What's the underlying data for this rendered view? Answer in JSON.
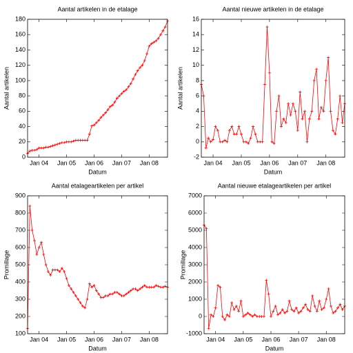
{
  "chart_data": [
    {
      "type": "line",
      "title": "Aantal artikelen in de etalage",
      "xlabel": "Datum",
      "ylabel": "Aantal artikelen",
      "color": "#ff0000",
      "x": [
        "2003-08",
        "2003-09",
        "2003-10",
        "2003-11",
        "2003-12",
        "2004-01",
        "2004-02",
        "2004-03",
        "2004-04",
        "2004-05",
        "2004-06",
        "2004-07",
        "2004-08",
        "2004-09",
        "2004-10",
        "2004-11",
        "2004-12",
        "2005-01",
        "2005-02",
        "2005-03",
        "2005-04",
        "2005-05",
        "2005-06",
        "2005-07",
        "2005-08",
        "2005-09",
        "2005-10",
        "2005-11",
        "2005-12",
        "2006-01",
        "2006-02",
        "2006-03",
        "2006-04",
        "2006-05",
        "2006-06",
        "2006-07",
        "2006-08",
        "2006-09",
        "2006-10",
        "2006-11",
        "2006-12",
        "2007-01",
        "2007-02",
        "2007-03",
        "2007-04",
        "2007-05",
        "2007-06",
        "2007-07",
        "2007-08",
        "2007-09",
        "2007-10",
        "2007-11",
        "2007-12",
        "2008-01",
        "2008-02",
        "2008-03",
        "2008-04",
        "2008-05",
        "2008-06",
        "2008-07",
        "2008-08",
        "2008-09"
      ],
      "values": [
        5,
        8,
        9,
        9,
        10,
        12,
        12,
        12,
        13,
        13,
        14,
        15,
        16,
        17,
        18,
        19,
        19,
        20,
        20,
        20,
        21,
        22,
        22,
        22,
        22,
        22,
        22,
        30,
        41,
        42,
        45,
        48,
        52,
        55,
        58,
        62,
        66,
        68,
        72,
        77,
        80,
        83,
        86,
        88,
        92,
        96,
        102,
        108,
        113,
        117,
        120,
        126,
        135,
        145,
        148,
        150,
        152,
        155,
        160,
        165,
        170,
        178
      ],
      "xlim": [
        "2003-08",
        "2008-09"
      ],
      "xticks": [
        {
          "value": "2004-01",
          "label": "Jan 04"
        },
        {
          "value": "2005-01",
          "label": "Jan 05"
        },
        {
          "value": "2006-01",
          "label": "Jan 06"
        },
        {
          "value": "2007-01",
          "label": "Jan 07"
        },
        {
          "value": "2008-01",
          "label": "Jan 08"
        }
      ],
      "ylim": [
        0,
        180
      ],
      "yticks": [
        0,
        20,
        40,
        60,
        80,
        100,
        120,
        140,
        160,
        180
      ]
    },
    {
      "type": "line",
      "title": "Aantal nieuwe artikelen in de etalage",
      "xlabel": "Datum",
      "ylabel": "Aantal artikelen",
      "color": "#ff0000",
      "x": [
        "2003-08",
        "2003-09",
        "2003-10",
        "2003-11",
        "2003-12",
        "2004-01",
        "2004-02",
        "2004-03",
        "2004-04",
        "2004-05",
        "2004-06",
        "2004-07",
        "2004-08",
        "2004-09",
        "2004-10",
        "2004-11",
        "2004-12",
        "2005-01",
        "2005-02",
        "2005-03",
        "2005-04",
        "2005-05",
        "2005-06",
        "2005-07",
        "2005-08",
        "2005-09",
        "2005-10",
        "2005-11",
        "2005-12",
        "2006-01",
        "2006-02",
        "2006-03",
        "2006-04",
        "2006-05",
        "2006-06",
        "2006-07",
        "2006-08",
        "2006-09",
        "2006-10",
        "2006-11",
        "2006-12",
        "2007-01",
        "2007-02",
        "2007-03",
        "2007-04",
        "2007-05",
        "2007-06",
        "2007-07",
        "2007-08",
        "2007-09",
        "2007-10",
        "2007-11",
        "2007-12",
        "2008-01",
        "2008-02",
        "2008-03",
        "2008-04",
        "2008-05",
        "2008-06",
        "2008-07",
        "2008-08",
        "2008-09"
      ],
      "values": [
        7.5,
        6,
        -0.8,
        0.5,
        0,
        0.3,
        2,
        1.5,
        0,
        0,
        0.2,
        0,
        1.5,
        2,
        1,
        1,
        2,
        1,
        0,
        0,
        -0.2,
        0.5,
        2,
        1,
        0,
        0,
        0,
        7.5,
        15,
        9,
        0,
        -0.2,
        4,
        6,
        2,
        3,
        2.5,
        5,
        3.5,
        5,
        4,
        1.5,
        6.5,
        3,
        4,
        0,
        3,
        4,
        8,
        9.5,
        3,
        4.5,
        4,
        8,
        11,
        4,
        1.5,
        1,
        3,
        6,
        2.5,
        5
      ],
      "xlim": [
        "2003-08",
        "2008-09"
      ],
      "xticks": [
        {
          "value": "2004-01",
          "label": "Jan 04"
        },
        {
          "value": "2005-01",
          "label": "Jan 05"
        },
        {
          "value": "2006-01",
          "label": "Jan 06"
        },
        {
          "value": "2007-01",
          "label": "Jan 07"
        },
        {
          "value": "2008-01",
          "label": "Jan 08"
        }
      ],
      "ylim": [
        -2,
        16
      ],
      "yticks": [
        -2,
        0,
        2,
        4,
        6,
        8,
        10,
        12,
        14,
        16
      ]
    },
    {
      "type": "line",
      "title": "Aantal etalageartikelen per artikel",
      "xlabel": "Datum",
      "ylabel": "Promillage",
      "color": "#ff0000",
      "x": [
        "2003-08",
        "2003-09",
        "2003-10",
        "2003-11",
        "2003-12",
        "2004-01",
        "2004-02",
        "2004-03",
        "2004-04",
        "2004-05",
        "2004-06",
        "2004-07",
        "2004-08",
        "2004-09",
        "2004-10",
        "2004-11",
        "2004-12",
        "2005-01",
        "2005-02",
        "2005-03",
        "2005-04",
        "2005-05",
        "2005-06",
        "2005-07",
        "2005-08",
        "2005-09",
        "2005-10",
        "2005-11",
        "2005-12",
        "2006-01",
        "2006-02",
        "2006-03",
        "2006-04",
        "2006-05",
        "2006-06",
        "2006-07",
        "2006-08",
        "2006-09",
        "2006-10",
        "2006-11",
        "2006-12",
        "2007-01",
        "2007-02",
        "2007-03",
        "2007-04",
        "2007-05",
        "2007-06",
        "2007-07",
        "2007-08",
        "2007-09",
        "2007-10",
        "2007-11",
        "2007-12",
        "2008-01",
        "2008-02",
        "2008-03",
        "2008-04",
        "2008-05",
        "2008-06",
        "2008-07",
        "2008-08",
        "2008-09"
      ],
      "values": [
        130,
        840,
        700,
        640,
        560,
        600,
        630,
        560,
        500,
        460,
        440,
        470,
        470,
        470,
        460,
        480,
        460,
        420,
        380,
        360,
        340,
        320,
        300,
        280,
        260,
        250,
        300,
        390,
        370,
        380,
        350,
        330,
        310,
        310,
        320,
        320,
        330,
        330,
        340,
        340,
        330,
        320,
        320,
        330,
        340,
        350,
        360,
        360,
        350,
        360,
        370,
        380,
        370,
        370,
        370,
        370,
        380,
        375,
        370,
        370,
        375,
        370
      ],
      "xlim": [
        "2003-08",
        "2008-09"
      ],
      "xticks": [
        {
          "value": "2004-01",
          "label": "Jan 04"
        },
        {
          "value": "2005-01",
          "label": "Jan 05"
        },
        {
          "value": "2006-01",
          "label": "Jan 06"
        },
        {
          "value": "2007-01",
          "label": "Jan 07"
        },
        {
          "value": "2008-01",
          "label": "Jan 08"
        }
      ],
      "ylim": [
        100,
        900
      ],
      "yticks": [
        100,
        200,
        300,
        400,
        500,
        600,
        700,
        800,
        900
      ]
    },
    {
      "type": "line",
      "title": "Aantal nieuwe etalageartikelen per artikel",
      "xlabel": "Datum",
      "ylabel": "Promillage",
      "color": "#ff0000",
      "x": [
        "2003-08",
        "2003-09",
        "2003-10",
        "2003-11",
        "2003-12",
        "2004-01",
        "2004-02",
        "2004-03",
        "2004-04",
        "2004-05",
        "2004-06",
        "2004-07",
        "2004-08",
        "2004-09",
        "2004-10",
        "2004-11",
        "2004-12",
        "2005-01",
        "2005-02",
        "2005-03",
        "2005-04",
        "2005-05",
        "2005-06",
        "2005-07",
        "2005-08",
        "2005-09",
        "2005-10",
        "2005-11",
        "2005-12",
        "2006-01",
        "2006-02",
        "2006-03",
        "2006-04",
        "2006-05",
        "2006-06",
        "2006-07",
        "2006-08",
        "2006-09",
        "2006-10",
        "2006-11",
        "2006-12",
        "2007-01",
        "2007-02",
        "2007-03",
        "2007-04",
        "2007-05",
        "2007-06",
        "2007-07",
        "2007-08",
        "2007-09",
        "2007-10",
        "2007-11",
        "2007-12",
        "2008-01",
        "2008-02",
        "2008-03",
        "2008-04",
        "2008-05",
        "2008-06",
        "2008-07",
        "2008-08",
        "2008-09"
      ],
      "values": [
        5300,
        5100,
        -700,
        100,
        0,
        500,
        1800,
        1700,
        0,
        -200,
        100,
        0,
        800,
        400,
        600,
        300,
        900,
        0,
        100,
        200,
        100,
        0,
        100,
        0,
        0,
        0,
        0,
        2100,
        1300,
        0,
        300,
        600,
        100,
        200,
        400,
        200,
        300,
        900,
        400,
        300,
        500,
        200,
        300,
        500,
        700,
        400,
        300,
        1200,
        600,
        300,
        900,
        400,
        500,
        1000,
        1600,
        600,
        200,
        300,
        500,
        700,
        400,
        600
      ],
      "xlim": [
        "2003-08",
        "2008-09"
      ],
      "xticks": [
        {
          "value": "2004-01",
          "label": "Jan 04"
        },
        {
          "value": "2005-01",
          "label": "Jan 05"
        },
        {
          "value": "2006-01",
          "label": "Jan 06"
        },
        {
          "value": "2007-01",
          "label": "Jan 07"
        },
        {
          "value": "2008-01",
          "label": "Jan 08"
        }
      ],
      "ylim": [
        -1000,
        7000
      ],
      "yticks": [
        -1000,
        0,
        1000,
        2000,
        3000,
        4000,
        5000,
        6000,
        7000
      ]
    }
  ]
}
